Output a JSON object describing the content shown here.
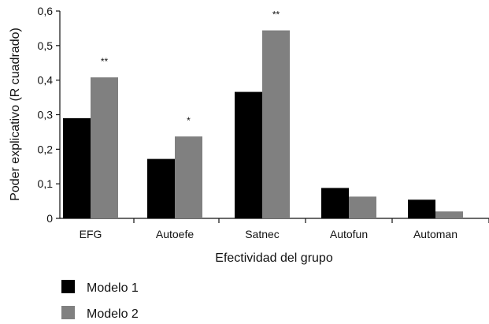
{
  "chart_data": {
    "type": "bar",
    "title": "",
    "xlabel": "Efectividad del grupo",
    "ylabel": "Poder explicativo (R cuadrado)",
    "ylim": [
      0,
      0.6
    ],
    "yticks": [
      "0",
      "0,1",
      "0,2",
      "0,3",
      "0,4",
      "0,5",
      "0,6"
    ],
    "categories": [
      "EFG",
      "Autoefe",
      "Satnec",
      "Autofun",
      "Automan"
    ],
    "series": [
      {
        "name": "Modelo 1",
        "color": "#000000",
        "values": [
          0.29,
          0.172,
          0.366,
          0.088,
          0.054
        ]
      },
      {
        "name": "Modelo 2",
        "color": "#808080",
        "values": [
          0.408,
          0.237,
          0.544,
          0.063,
          0.02
        ]
      }
    ],
    "annotations": [
      {
        "category": "EFG",
        "series": "Modelo 2",
        "text": "**"
      },
      {
        "category": "Autoefe",
        "series": "Modelo 2",
        "text": "*"
      },
      {
        "category": "Satnec",
        "series": "Modelo 2",
        "text": "**"
      }
    ],
    "legend": {
      "position": "bottom-left"
    },
    "grid": false
  }
}
